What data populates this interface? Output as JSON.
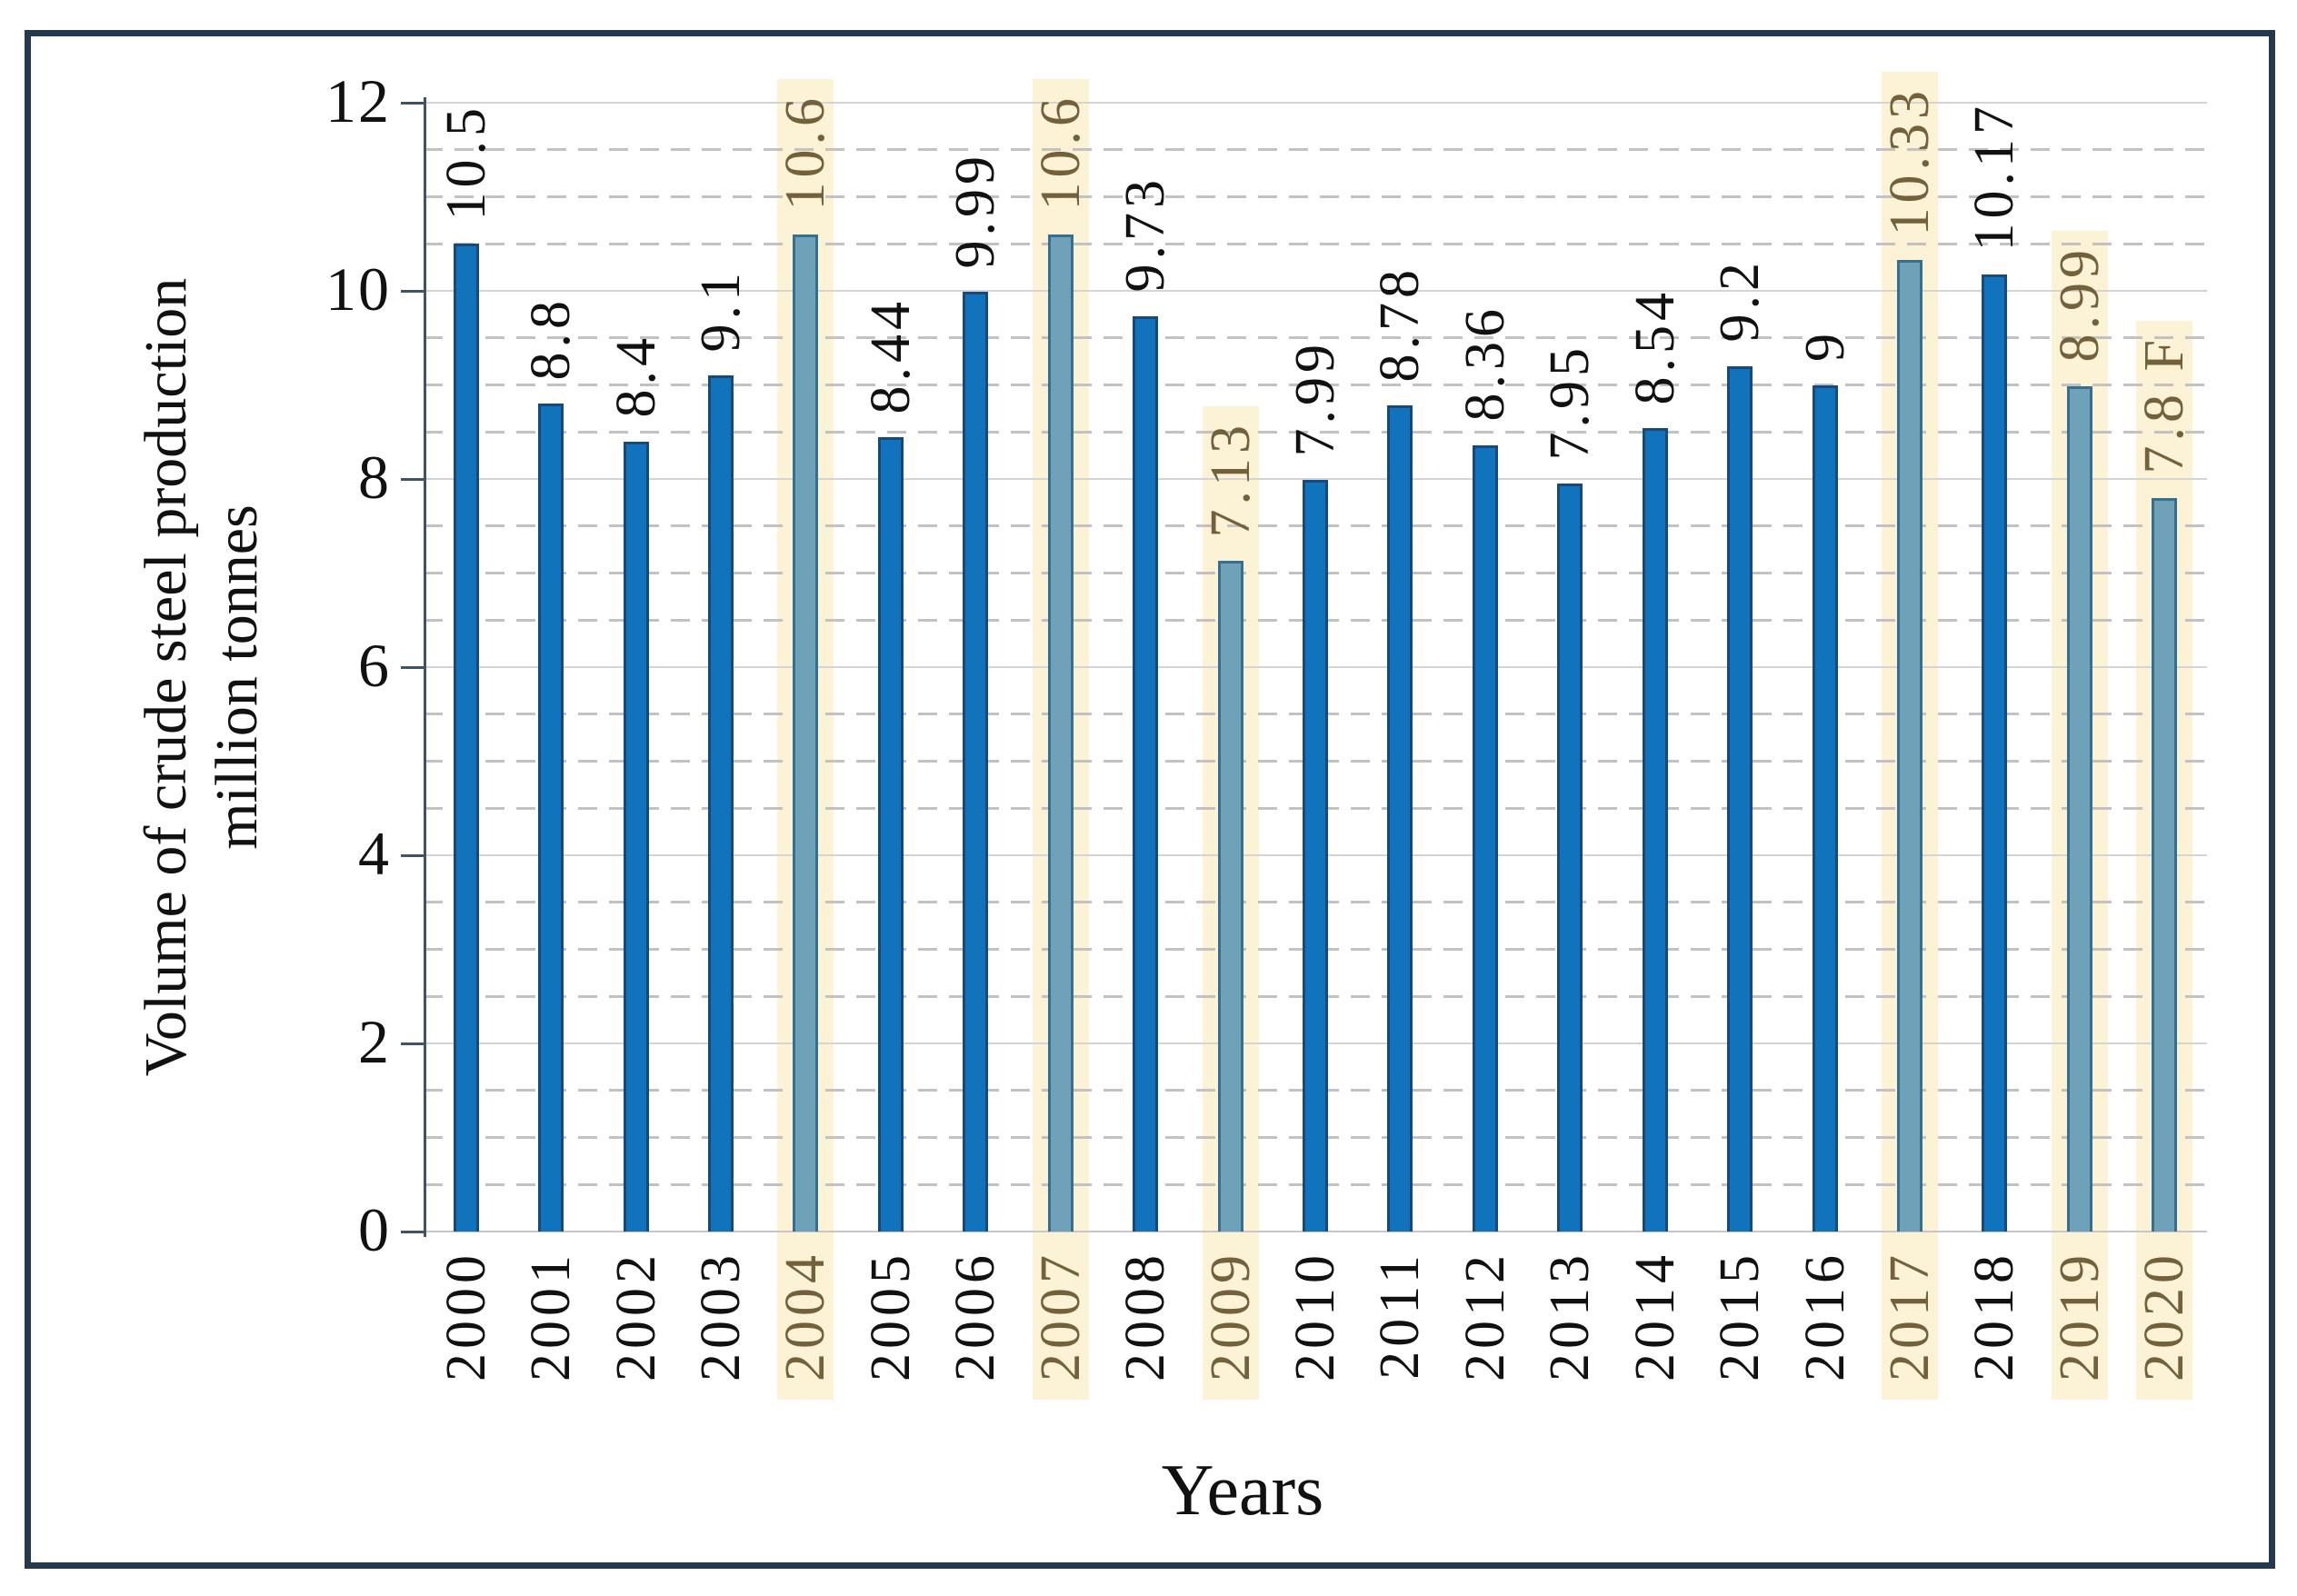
{
  "chart_data": {
    "type": "bar",
    "title": "",
    "xlabel": "Years",
    "ylabel_line1": "Volume of crude steel production",
    "ylabel_line2": "million tonnes",
    "categories": [
      "2000",
      "2001",
      "2002",
      "2003",
      "2004",
      "2005",
      "2006",
      "2007",
      "2008",
      "2009",
      "2010",
      "2011",
      "2012",
      "2013",
      "2014",
      "2015",
      "2016",
      "2017",
      "2018",
      "2019",
      "2020"
    ],
    "values": [
      10.5,
      8.8,
      8.4,
      9.1,
      10.6,
      8.44,
      9.99,
      10.6,
      9.73,
      7.13,
      7.99,
      8.78,
      8.36,
      7.95,
      8.54,
      9.2,
      9,
      10.33,
      10.17,
      8.99,
      7.8
    ],
    "value_labels": [
      "10.5",
      "8.8",
      "8.4",
      "9.1",
      "10.6",
      "8.44",
      "9.99",
      "10.6",
      "9.73",
      "7.13",
      "7.99",
      "8.78",
      "8.36",
      "7.95",
      "8.54",
      "9.2",
      "9",
      "10.33",
      "10.17",
      "8.99",
      "7.8 F"
    ],
    "highlighted_years": [
      "2004",
      "2007",
      "2009",
      "2017",
      "2019",
      "2020"
    ],
    "ylim": [
      0,
      12
    ],
    "ytick_step": 2,
    "minor_gridline_step": 0.5,
    "yticks": [
      "0",
      "2",
      "4",
      "6",
      "8",
      "10",
      "12"
    ],
    "grid": "major solid, minor dashed",
    "legend": "none",
    "colors": {
      "bar_fill": "#1173bb",
      "bar_border": "#17497a",
      "highlight_bar_fill": "#6fa1b9",
      "highlight_bar_border": "#35708f",
      "highlight_band": "#fcf2d5",
      "highlight_text": "#72613a",
      "normal_text": "#111111",
      "major_grid": "#d4d4d4",
      "minor_grid": "#c2c2c2",
      "axis_line": "#3f5368",
      "frame_border": "#24384e"
    }
  }
}
